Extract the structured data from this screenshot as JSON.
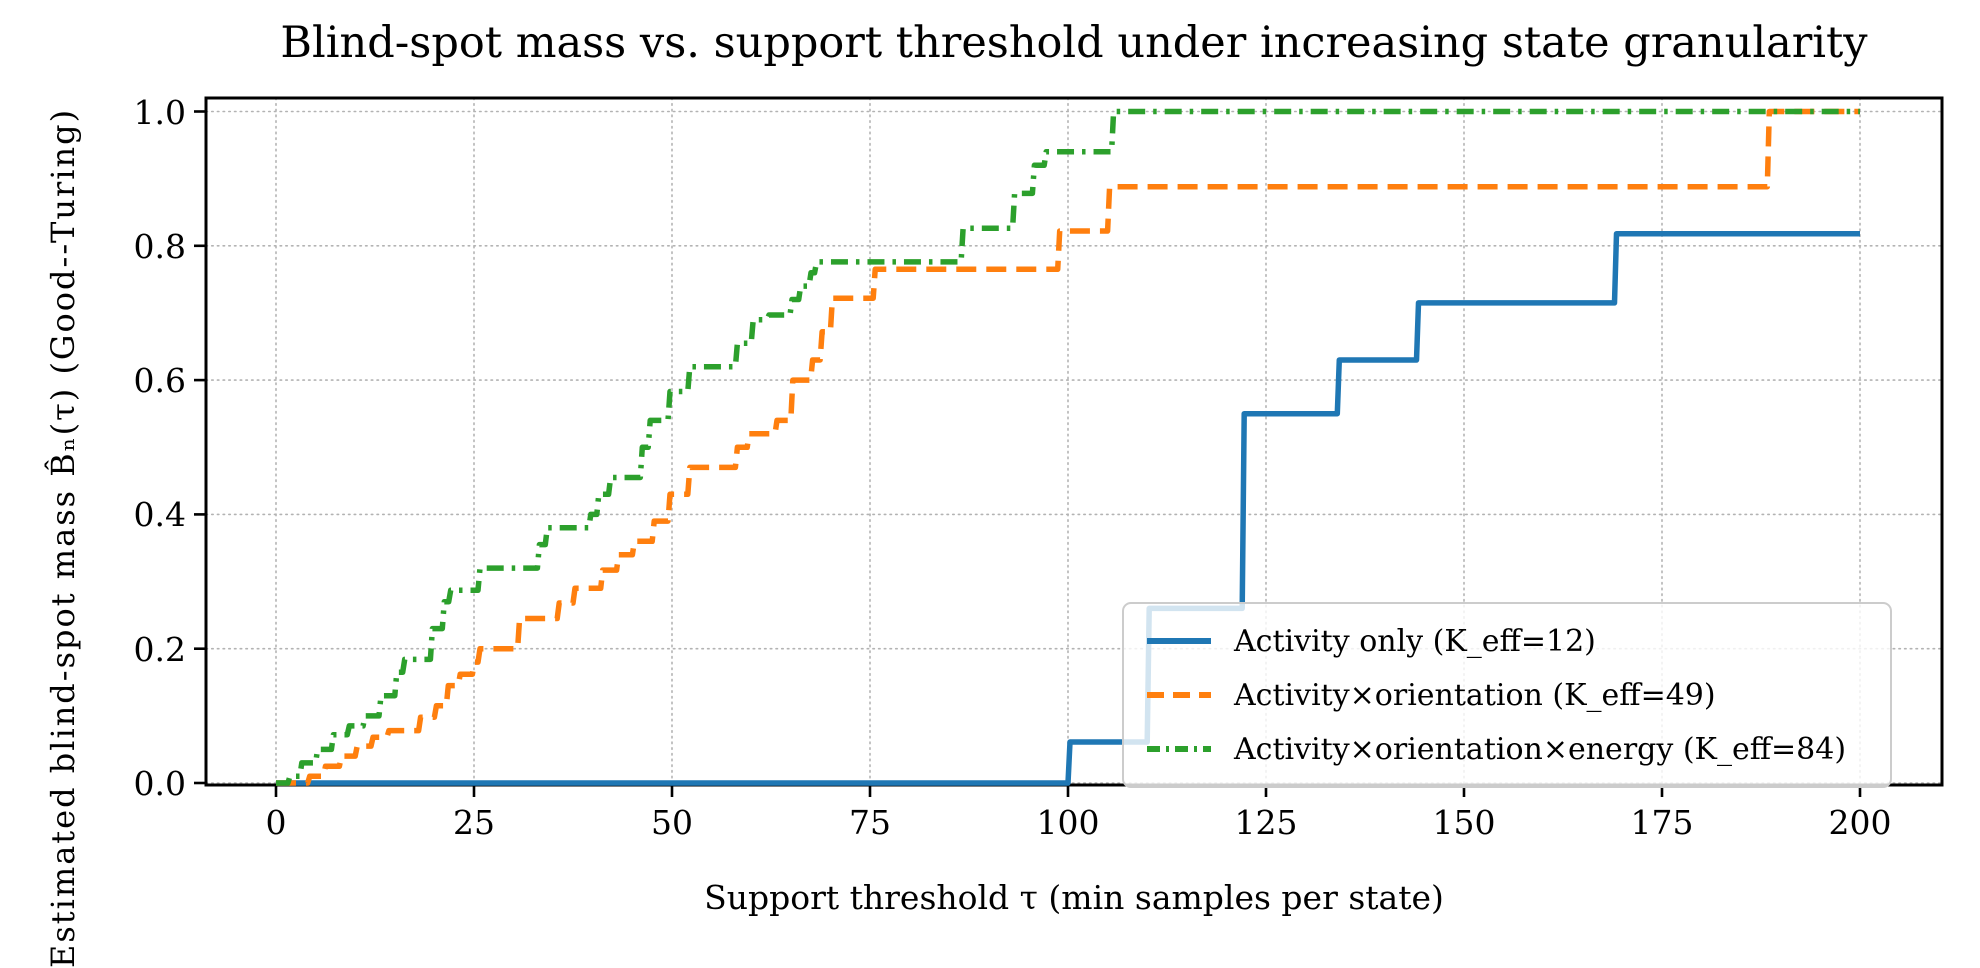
{
  "figure": {
    "title": "Blind-spot mass vs. support threshold under increasing state granularity",
    "xlabel": "Support threshold τ (min samples per state)",
    "ylabel": "Estimated blind-spot mass B̂ₙ(τ) (Good--Turing)"
  },
  "legend": {
    "entries": [
      {
        "label": "Activity only (K_eff=12)",
        "color": "#1f77b4",
        "style": "solid"
      },
      {
        "label": "Activity×orientation (K_eff=49)",
        "color": "#ff7f0e",
        "style": "dashed"
      },
      {
        "label": "Activity×orientation×energy (K_eff=84)",
        "color": "#2ca02c",
        "style": "dashdot"
      }
    ]
  },
  "chart_data": {
    "type": "line",
    "subtype": "step",
    "title": "Blind-spot mass vs. support threshold under increasing state granularity",
    "xlabel": "Support threshold τ (min samples per state)",
    "ylabel": "Estimated blind-spot mass B̂ₙ(τ) (Good--Turing)",
    "xlim": [
      -9,
      209
    ],
    "ylim": [
      0,
      1.042
    ],
    "x_end": 200,
    "grid": "dotted",
    "legend_position": "lower right",
    "x_ticks": [
      0,
      25,
      50,
      75,
      100,
      125,
      150,
      175,
      200
    ],
    "y_ticks": [
      {
        "v": 0.0,
        "label": "0.0"
      },
      {
        "v": 0.2,
        "label": "0.2"
      },
      {
        "v": 0.4,
        "label": "0.4"
      },
      {
        "v": 0.6,
        "label": "0.6"
      },
      {
        "v": 0.8,
        "label": "0.8"
      },
      {
        "v": 1.0,
        "label": "1.0"
      }
    ],
    "series": [
      {
        "name": "Activity only (K_eff=12)",
        "color": "#1f77b4",
        "style": "solid",
        "steps": [
          [
            0,
            0
          ],
          [
            100,
            0.061
          ],
          [
            110,
            0.26
          ],
          [
            122,
            0.55
          ],
          [
            134,
            0.63
          ],
          [
            144,
            0.715
          ],
          [
            169,
            0.818
          ]
        ]
      },
      {
        "name": "Activity×orientation (K_eff=49)",
        "color": "#ff7f0e",
        "style": "dashed",
        "steps": [
          [
            0,
            0
          ],
          [
            4,
            0.01
          ],
          [
            6,
            0.025
          ],
          [
            8,
            0.04
          ],
          [
            10,
            0.055
          ],
          [
            12,
            0.068
          ],
          [
            14,
            0.078
          ],
          [
            18,
            0.098
          ],
          [
            20,
            0.115
          ],
          [
            21.5,
            0.145
          ],
          [
            23,
            0.162
          ],
          [
            24.8,
            0.18
          ],
          [
            25.5,
            0.2
          ],
          [
            30.5,
            0.245
          ],
          [
            35.5,
            0.268
          ],
          [
            37.5,
            0.29
          ],
          [
            41,
            0.317
          ],
          [
            43,
            0.34
          ],
          [
            45,
            0.36
          ],
          [
            47.5,
            0.39
          ],
          [
            49.5,
            0.43
          ],
          [
            52,
            0.47
          ],
          [
            58,
            0.5
          ],
          [
            59.5,
            0.52
          ],
          [
            63,
            0.54
          ],
          [
            65,
            0.6
          ],
          [
            67.5,
            0.63
          ],
          [
            68.7,
            0.672
          ],
          [
            70,
            0.722
          ],
          [
            75.4,
            0.765
          ],
          [
            98.7,
            0.822
          ],
          [
            105,
            0.888
          ],
          [
            188.3,
            1.0
          ]
        ]
      },
      {
        "name": "Activity×orientation×energy (K_eff=84)",
        "color": "#2ca02c",
        "style": "dashdot",
        "steps": [
          [
            0,
            0
          ],
          [
            1.5,
            0.01
          ],
          [
            3,
            0.03
          ],
          [
            5,
            0.05
          ],
          [
            7,
            0.072
          ],
          [
            9,
            0.085
          ],
          [
            11,
            0.1
          ],
          [
            13,
            0.13
          ],
          [
            15,
            0.165
          ],
          [
            16,
            0.184
          ],
          [
            19.5,
            0.23
          ],
          [
            21,
            0.27
          ],
          [
            21.8,
            0.287
          ],
          [
            25.5,
            0.32
          ],
          [
            33,
            0.355
          ],
          [
            34,
            0.38
          ],
          [
            39.5,
            0.4
          ],
          [
            40.5,
            0.43
          ],
          [
            42,
            0.455
          ],
          [
            46,
            0.5
          ],
          [
            47,
            0.54
          ],
          [
            49.5,
            0.583
          ],
          [
            52,
            0.62
          ],
          [
            58,
            0.655
          ],
          [
            60,
            0.69
          ],
          [
            62,
            0.697
          ],
          [
            64.9,
            0.72
          ],
          [
            66,
            0.74
          ],
          [
            67.3,
            0.76
          ],
          [
            68,
            0.776
          ],
          [
            86.5,
            0.826
          ],
          [
            93,
            0.878
          ],
          [
            95.5,
            0.92
          ],
          [
            97,
            0.94
          ],
          [
            105.5,
            1.0
          ]
        ]
      }
    ],
    "colors": {
      "grid": "#b3b3b3",
      "spine": "#000000",
      "text": "#000000"
    }
  }
}
